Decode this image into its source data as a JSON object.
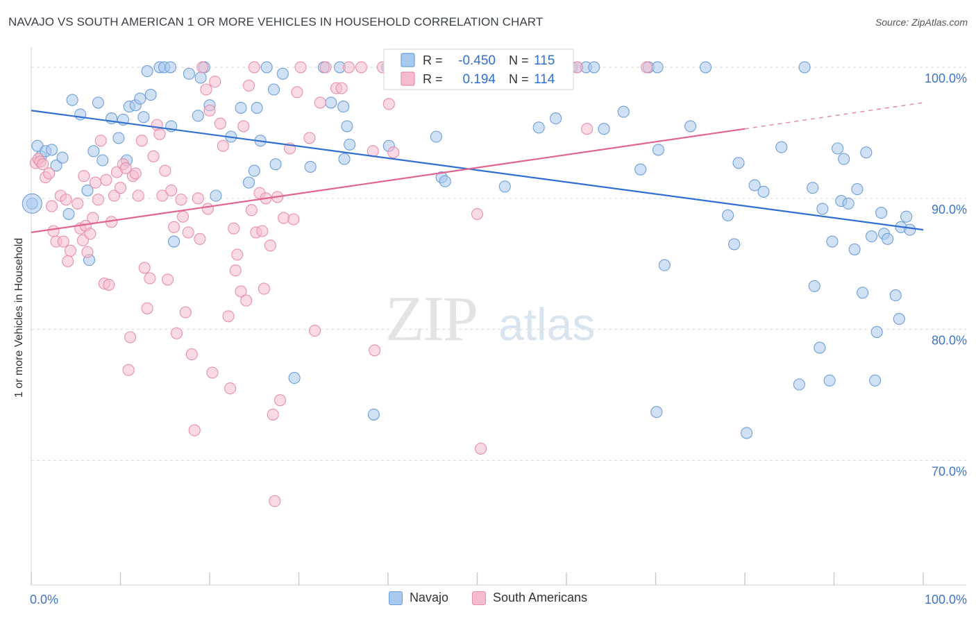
{
  "header": {
    "title": "NAVAJO VS SOUTH AMERICAN 1 OR MORE VEHICLES IN HOUSEHOLD CORRELATION CHART",
    "source": "Source: ZipAtlas.com"
  },
  "watermark": {
    "zip": "ZIP",
    "atlas": "atlas"
  },
  "colors": {
    "navajo_fill": "#a9c8ee",
    "navajo_stroke": "#6d9fd8",
    "navajo_line": "#2f6fd1",
    "south_fill": "#f6bccd",
    "south_stroke": "#e98eab",
    "south_line": "#e0648f",
    "axis_text": "#3e74c8",
    "grid": "#dcdcdc"
  },
  "legend_box": {
    "rows": [
      {
        "r_label": "R =",
        "r_value": "-0.450",
        "n_label": "N =",
        "n_value": "115"
      },
      {
        "r_label": "R =",
        "r_value": "0.194",
        "n_label": "N =",
        "n_value": "114"
      }
    ]
  },
  "bottom_legend": {
    "navajo": "Navajo",
    "south": "South Americans"
  },
  "chart_data": {
    "type": "scatter",
    "title": "NAVAJO VS SOUTH AMERICAN 1 OR MORE VEHICLES IN HOUSEHOLD CORRELATION CHART",
    "xlabel": "",
    "ylabel": "1 or more Vehicles in Household",
    "xlim": [
      0,
      100
    ],
    "ylim": [
      60.5,
      101
    ],
    "x_tick_labels": [
      {
        "value": 0,
        "label": "0.0%"
      },
      {
        "value": 100,
        "label": "100.0%"
      }
    ],
    "y_tick_labels": [
      {
        "value": 100,
        "label": "100.0%"
      },
      {
        "value": 90,
        "label": "90.0%"
      },
      {
        "value": 80,
        "label": "80.0%"
      },
      {
        "value": 70,
        "label": "70.0%"
      }
    ],
    "x_minor_ticks": [
      0,
      10,
      20,
      30,
      40,
      50,
      60,
      70,
      80,
      90,
      100
    ],
    "grid": true,
    "legend_position": "top-center",
    "series": [
      {
        "name": "Navajo",
        "r": -0.45,
        "n": 115,
        "trend": {
          "x": [
            0,
            100
          ],
          "y": [
            96.7,
            87.6
          ]
        },
        "points": [
          [
            0.1,
            89.6
          ],
          [
            0.7,
            94.0
          ],
          [
            1.1,
            93.2
          ],
          [
            1.6,
            93.6
          ],
          [
            2.3,
            93.7
          ],
          [
            2.8,
            92.5
          ],
          [
            3.5,
            93.1
          ],
          [
            4.2,
            88.8
          ],
          [
            4.6,
            97.5
          ],
          [
            5.5,
            96.4
          ],
          [
            6.3,
            90.6
          ],
          [
            6.5,
            85.3
          ],
          [
            7.0,
            93.6
          ],
          [
            7.5,
            97.3
          ],
          [
            8.0,
            92.9
          ],
          [
            9.0,
            96.1
          ],
          [
            9.8,
            94.6
          ],
          [
            10.3,
            96.0
          ],
          [
            10.7,
            92.9
          ],
          [
            11.0,
            97.0
          ],
          [
            11.7,
            97.1
          ],
          [
            12.2,
            97.6
          ],
          [
            12.6,
            96.2
          ],
          [
            13.0,
            99.7
          ],
          [
            13.4,
            97.9
          ],
          [
            14.4,
            100.0
          ],
          [
            14.9,
            100.0
          ],
          [
            15.6,
            100.0
          ],
          [
            15.7,
            95.5
          ],
          [
            16.0,
            86.7
          ],
          [
            17.7,
            99.5
          ],
          [
            18.7,
            96.3
          ],
          [
            19.0,
            99.2
          ],
          [
            19.4,
            100.0
          ],
          [
            20.0,
            97.1
          ],
          [
            20.7,
            90.2
          ],
          [
            22.4,
            94.7
          ],
          [
            23.5,
            96.9
          ],
          [
            24.4,
            91.2
          ],
          [
            25.0,
            92.1
          ],
          [
            25.3,
            96.9
          ],
          [
            25.7,
            94.4
          ],
          [
            26.4,
            100.0
          ],
          [
            27.2,
            98.3
          ],
          [
            27.4,
            92.6
          ],
          [
            28.2,
            99.5
          ],
          [
            29.5,
            76.3
          ],
          [
            31.3,
            92.4
          ],
          [
            32.8,
            100.0
          ],
          [
            33.6,
            97.3
          ],
          [
            34.6,
            100.0
          ],
          [
            35.0,
            97.0
          ],
          [
            35.1,
            93.0
          ],
          [
            35.4,
            95.5
          ],
          [
            35.7,
            94.1
          ],
          [
            38.4,
            73.5
          ],
          [
            39.9,
            100.0
          ],
          [
            40.1,
            94.0
          ],
          [
            40.3,
            100.0
          ],
          [
            45.4,
            94.7
          ],
          [
            46.0,
            91.6
          ],
          [
            46.4,
            91.3
          ],
          [
            47.5,
            100.0
          ],
          [
            53.1,
            90.9
          ],
          [
            55.3,
            100.0
          ],
          [
            56.9,
            95.4
          ],
          [
            58.8,
            96.1
          ],
          [
            60.6,
            100.0
          ],
          [
            61.2,
            100.0
          ],
          [
            62.2,
            100.0
          ],
          [
            63.1,
            100.0
          ],
          [
            64.2,
            95.3
          ],
          [
            66.4,
            96.6
          ],
          [
            68.3,
            92.2
          ],
          [
            69.2,
            100.0
          ],
          [
            70.2,
            100.0
          ],
          [
            70.3,
            93.7
          ],
          [
            71.0,
            84.9
          ],
          [
            70.1,
            73.7
          ],
          [
            73.9,
            95.5
          ],
          [
            75.6,
            100.0
          ],
          [
            78.1,
            88.7
          ],
          [
            78.8,
            86.5
          ],
          [
            79.3,
            92.7
          ],
          [
            80.2,
            72.1
          ],
          [
            81.1,
            91.0
          ],
          [
            82.1,
            90.5
          ],
          [
            84.1,
            93.9
          ],
          [
            86.1,
            75.8
          ],
          [
            86.7,
            100.0
          ],
          [
            87.6,
            90.8
          ],
          [
            87.8,
            83.3
          ],
          [
            88.4,
            78.6
          ],
          [
            88.7,
            89.2
          ],
          [
            89.5,
            76.1
          ],
          [
            89.8,
            86.7
          ],
          [
            90.4,
            93.8
          ],
          [
            90.8,
            89.8
          ],
          [
            91.1,
            93.0
          ],
          [
            91.6,
            89.6
          ],
          [
            92.3,
            86.1
          ],
          [
            92.6,
            90.7
          ],
          [
            93.2,
            82.8
          ],
          [
            93.6,
            93.5
          ],
          [
            94.2,
            87.1
          ],
          [
            94.6,
            76.1
          ],
          [
            94.8,
            79.8
          ],
          [
            95.3,
            88.9
          ],
          [
            95.6,
            87.3
          ],
          [
            96.0,
            86.9
          ],
          [
            96.9,
            82.6
          ],
          [
            97.3,
            80.8
          ],
          [
            97.5,
            87.8
          ],
          [
            98.1,
            88.6
          ],
          [
            98.5,
            87.6
          ]
        ]
      },
      {
        "name": "South Americans",
        "r": 0.194,
        "n": 114,
        "trend": {
          "x": [
            0,
            80
          ],
          "y": [
            87.4,
            95.3
          ],
          "dashed_to": {
            "x": 100,
            "y": 97.3
          }
        },
        "points": [
          [
            0.5,
            92.7
          ],
          [
            0.8,
            93.0
          ],
          [
            1.0,
            92.8
          ],
          [
            1.3,
            92.6
          ],
          [
            1.6,
            91.6
          ],
          [
            2.0,
            91.9
          ],
          [
            2.3,
            89.4
          ],
          [
            2.5,
            87.5
          ],
          [
            2.8,
            86.7
          ],
          [
            3.3,
            90.2
          ],
          [
            3.6,
            86.7
          ],
          [
            3.9,
            89.9
          ],
          [
            4.1,
            85.2
          ],
          [
            4.4,
            86.0
          ],
          [
            5.2,
            89.6
          ],
          [
            5.5,
            87.7
          ],
          [
            5.8,
            86.8
          ],
          [
            5.9,
            91.7
          ],
          [
            6.1,
            87.9
          ],
          [
            6.3,
            85.9
          ],
          [
            6.6,
            87.3
          ],
          [
            6.9,
            88.5
          ],
          [
            7.2,
            91.2
          ],
          [
            7.5,
            89.9
          ],
          [
            7.8,
            94.4
          ],
          [
            8.2,
            83.5
          ],
          [
            8.4,
            91.4
          ],
          [
            8.7,
            83.4
          ],
          [
            9.0,
            88.2
          ],
          [
            9.3,
            90.2
          ],
          [
            9.6,
            92.0
          ],
          [
            10.0,
            90.8
          ],
          [
            10.3,
            92.6
          ],
          [
            10.6,
            92.3
          ],
          [
            10.9,
            76.9
          ],
          [
            11.1,
            79.4
          ],
          [
            11.4,
            91.7
          ],
          [
            11.7,
            91.9
          ],
          [
            12.0,
            90.2
          ],
          [
            12.4,
            94.4
          ],
          [
            12.7,
            84.7
          ],
          [
            13.0,
            81.6
          ],
          [
            13.3,
            83.9
          ],
          [
            13.7,
            93.2
          ],
          [
            14.1,
            95.6
          ],
          [
            14.4,
            94.9
          ],
          [
            14.7,
            90.2
          ],
          [
            15.0,
            92.1
          ],
          [
            15.3,
            83.8
          ],
          [
            15.7,
            90.6
          ],
          [
            16.0,
            87.8
          ],
          [
            16.3,
            79.7
          ],
          [
            16.8,
            89.9
          ],
          [
            17.0,
            88.6
          ],
          [
            17.3,
            81.3
          ],
          [
            17.6,
            87.4
          ],
          [
            18.0,
            78.1
          ],
          [
            18.3,
            72.3
          ],
          [
            18.7,
            90.0
          ],
          [
            18.9,
            86.9
          ],
          [
            19.2,
            100.0
          ],
          [
            19.6,
            98.3
          ],
          [
            19.8,
            89.2
          ],
          [
            20.0,
            96.7
          ],
          [
            20.3,
            76.7
          ],
          [
            20.6,
            98.9
          ],
          [
            21.2,
            95.7
          ],
          [
            21.5,
            94.0
          ],
          [
            22.1,
            81.0
          ],
          [
            22.3,
            75.5
          ],
          [
            22.7,
            87.7
          ],
          [
            22.9,
            84.5
          ],
          [
            23.1,
            85.7
          ],
          [
            23.5,
            82.9
          ],
          [
            23.8,
            95.5
          ],
          [
            24.1,
            82.2
          ],
          [
            24.4,
            98.6
          ],
          [
            24.7,
            89.1
          ],
          [
            25.0,
            100.0
          ],
          [
            25.2,
            87.4
          ],
          [
            25.6,
            90.4
          ],
          [
            25.9,
            87.5
          ],
          [
            26.1,
            83.1
          ],
          [
            26.3,
            90.0
          ],
          [
            26.8,
            86.4
          ],
          [
            27.1,
            73.5
          ],
          [
            27.3,
            66.9
          ],
          [
            27.6,
            90.1
          ],
          [
            27.9,
            74.6
          ],
          [
            28.3,
            88.5
          ],
          [
            29.0,
            93.8
          ],
          [
            29.4,
            88.4
          ],
          [
            29.8,
            98.1
          ],
          [
            30.2,
            100.0
          ],
          [
            31.2,
            94.6
          ],
          [
            31.8,
            79.9
          ],
          [
            32.4,
            97.3
          ],
          [
            33.0,
            100.0
          ],
          [
            34.2,
            98.4
          ],
          [
            34.8,
            98.4
          ],
          [
            35.6,
            100.0
          ],
          [
            37.0,
            100.0
          ],
          [
            38.3,
            93.6
          ],
          [
            38.5,
            78.4
          ],
          [
            39.4,
            100.0
          ],
          [
            40.1,
            97.2
          ],
          [
            40.6,
            93.5
          ],
          [
            46.8,
            100.0
          ],
          [
            50.0,
            88.8
          ],
          [
            50.4,
            70.9
          ],
          [
            57.6,
            100.0
          ],
          [
            61.2,
            100.0
          ],
          [
            62.3,
            95.3
          ],
          [
            69.0,
            100.0
          ]
        ]
      }
    ]
  }
}
